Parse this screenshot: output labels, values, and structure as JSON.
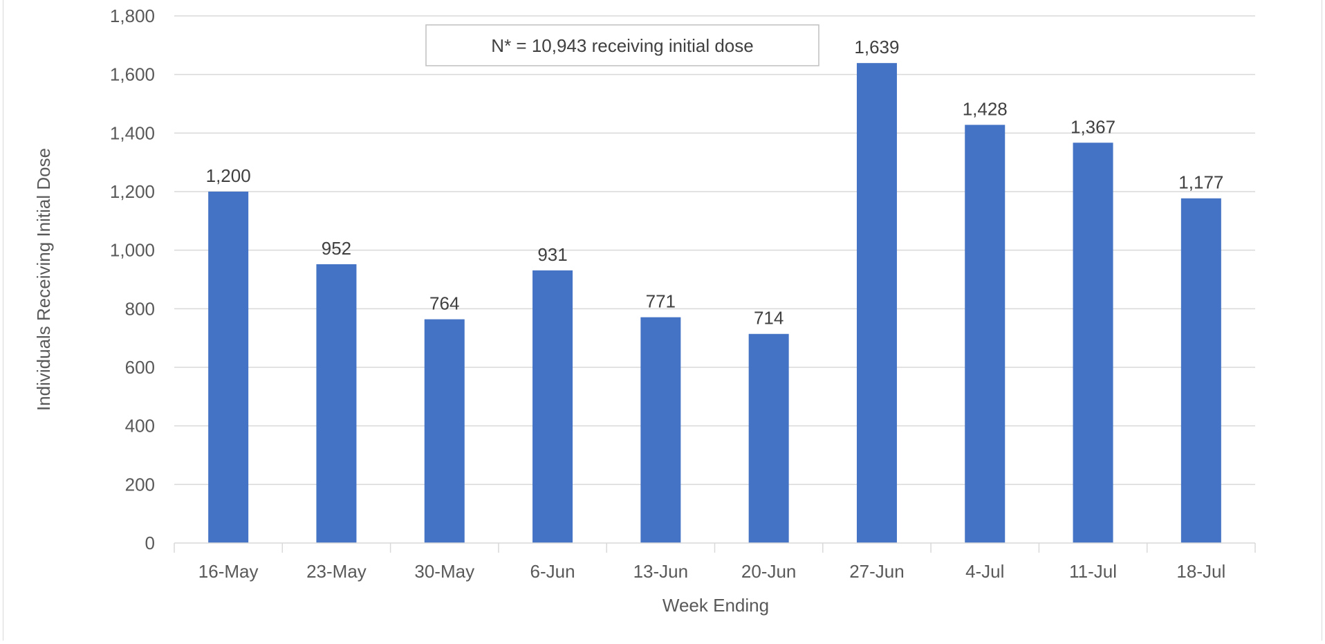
{
  "chart_data": {
    "type": "bar",
    "categories": [
      "16-May",
      "23-May",
      "30-May",
      "6-Jun",
      "13-Jun",
      "20-Jun",
      "27-Jun",
      "4-Jul",
      "11-Jul",
      "18-Jul"
    ],
    "values": [
      1200,
      952,
      764,
      931,
      771,
      714,
      1639,
      1428,
      1367,
      1177
    ],
    "data_labels": [
      "1,200",
      "952",
      "764",
      "931",
      "771",
      "714",
      "1,639",
      "1,428",
      "1,367",
      "1,177"
    ],
    "xlabel": "Week Ending",
    "ylabel": "Individuals Receiving Initial Dose",
    "ylim": [
      0,
      1800
    ],
    "yticks": [
      0,
      200,
      400,
      600,
      800,
      1000,
      1200,
      1400,
      1600,
      1800
    ],
    "ytick_labels": [
      "0",
      "200",
      "400",
      "600",
      "800",
      "1,000",
      "1,200",
      "1,400",
      "1,600",
      "1,800"
    ],
    "annotation": "N* = 10,943 receiving initial dose",
    "grid": true,
    "bar_color": "#4472C4",
    "grid_color": "#D9D9D9",
    "text_color": "#404040"
  }
}
